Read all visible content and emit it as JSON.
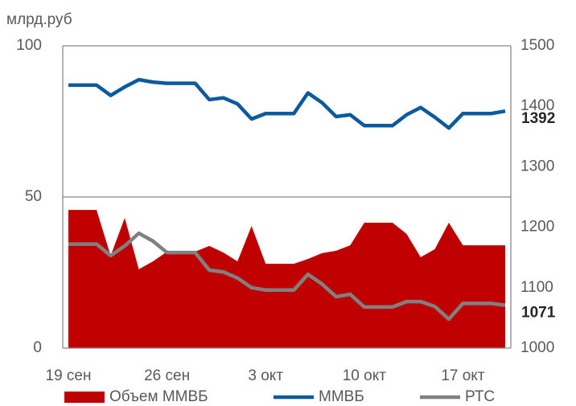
{
  "chart_data": {
    "type": "area_line",
    "y_unit_label": "млрд.руб",
    "categories": [
      "19 сен",
      null,
      null,
      null,
      null,
      null,
      null,
      "26 сен",
      null,
      null,
      null,
      null,
      null,
      null,
      "3 окт",
      null,
      null,
      null,
      null,
      null,
      null,
      "10 окт",
      null,
      null,
      null,
      null,
      null,
      null,
      "17 окт",
      null,
      null,
      null
    ],
    "ylim": [
      0,
      100
    ],
    "yticks": [
      0,
      50,
      100
    ],
    "y2lim": [
      1000,
      1500
    ],
    "y2ticks": [
      1000,
      1100,
      1200,
      1300,
      1400,
      1500
    ],
    "grid": true,
    "legend": "bottom",
    "series": [
      {
        "name": "Объем ММВБ",
        "kind": "area",
        "color": "#c00000",
        "values": [
          45.7,
          45.7,
          45.7,
          30.6,
          43.1,
          26.1,
          28.7,
          31.9,
          31.9,
          31.9,
          33.8,
          31.6,
          28.7,
          40.4,
          27.9,
          27.9,
          27.9,
          29.5,
          31.4,
          32.2,
          34.0,
          41.5,
          41.5,
          41.5,
          37.8,
          30.1,
          32.7,
          41.5,
          34.0,
          34.0,
          34.0,
          34.0
        ]
      },
      {
        "name": "ММВБ",
        "kind": "line",
        "axis": "y2",
        "color": "#0c5a9e",
        "values": [
          1435,
          1435,
          1435,
          1418,
          1432,
          1444,
          1440,
          1438,
          1438,
          1438,
          1411,
          1414,
          1404,
          1379,
          1388,
          1388,
          1388,
          1422,
          1406,
          1383,
          1386,
          1368,
          1368,
          1368,
          1386,
          1398,
          1382,
          1364,
          1388,
          1388,
          1388,
          1392
        ],
        "value_labels": [
          null,
          null,
          null,
          null,
          null,
          null,
          null,
          null,
          null,
          null,
          null,
          null,
          null,
          null,
          null,
          null,
          null,
          null,
          null,
          null,
          null,
          null,
          null,
          null,
          null,
          null,
          null,
          null,
          null,
          null,
          null,
          "1392"
        ]
      },
      {
        "name": "РТС",
        "kind": "line",
        "axis": "y2",
        "color": "#808080",
        "values": [
          1172,
          1172,
          1172,
          1153,
          1169,
          1190,
          1177,
          1158,
          1158,
          1158,
          1129,
          1126,
          1116,
          1100,
          1096,
          1096,
          1096,
          1122,
          1106,
          1085,
          1089,
          1068,
          1068,
          1068,
          1077,
          1077,
          1069,
          1048,
          1074,
          1074,
          1074,
          1071
        ],
        "value_labels": [
          null,
          null,
          null,
          null,
          null,
          null,
          null,
          null,
          null,
          null,
          null,
          null,
          null,
          null,
          null,
          null,
          null,
          null,
          null,
          null,
          null,
          null,
          null,
          null,
          null,
          null,
          null,
          null,
          null,
          null,
          null,
          "1071"
        ]
      }
    ]
  }
}
